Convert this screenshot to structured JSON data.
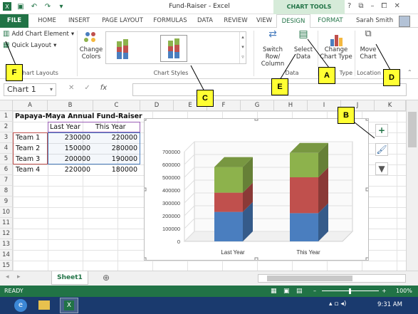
{
  "window": {
    "title": "Fund-Raiser - Excel",
    "context_header": "CHART TOOLS",
    "controls": [
      "?",
      "⧉",
      "–",
      "⧠",
      "✕"
    ]
  },
  "tabs": [
    "FILE",
    "HOME",
    "INSERT",
    "PAGE LAYOUT",
    "FORMULAS",
    "DATA",
    "REVIEW",
    "VIEW",
    "DESIGN",
    "FORMAT"
  ],
  "user": "Sarah Smith",
  "ribbon": {
    "add_chart_element": "Add Chart Element",
    "quick_layout": "Quick Layout",
    "chart_layouts_label": "Chart Layouts",
    "change_colors": "Change",
    "change_colors2": "Colors",
    "chart_styles_label": "Chart Styles",
    "switch_row": "Switch Row/",
    "switch_col": "Column",
    "select": "Select",
    "data": "Data",
    "data_label": "Data",
    "change_type": "Change",
    "change_type2": "Chart Type",
    "type_label": "Type",
    "move_chart": "Move",
    "move_chart2": "Chart",
    "location_label": "Location"
  },
  "namebox": "Chart 1",
  "columns": [
    "A",
    "B",
    "C",
    "D",
    "E",
    "F",
    "G",
    "H",
    "I",
    "J",
    "K"
  ],
  "rows": [
    "1",
    "2",
    "3",
    "4",
    "5",
    "6",
    "7",
    "8",
    "9",
    "10",
    "11",
    "12",
    "13",
    "14",
    "15"
  ],
  "sheet": {
    "title": "Papaya-Maya Annual Fund-Raiser",
    "headers": [
      "Last Year",
      "This Year"
    ],
    "data": [
      {
        "team": "Team 1",
        "last": "230000",
        "this": "220000"
      },
      {
        "team": "Team 2",
        "last": "150000",
        "this": "280000"
      },
      {
        "team": "Team 3",
        "last": "200000",
        "this": "190000"
      },
      {
        "team": "Team 4",
        "last": "220000",
        "this": "180000"
      }
    ]
  },
  "chart_data": {
    "type": "bar",
    "stacked": true,
    "categories": [
      "Last Year",
      "This Year"
    ],
    "series": [
      {
        "values": [
          230000,
          220000
        ],
        "color": "#4a7ebf"
      },
      {
        "values": [
          150000,
          280000
        ],
        "color": "#c0504d"
      },
      {
        "values": [
          200000,
          190000
        ],
        "color": "#8db24c"
      }
    ],
    "ylim": [
      0,
      700000
    ],
    "yticks": [
      "0",
      "100000",
      "200000",
      "300000",
      "400000",
      "500000",
      "600000",
      "700000"
    ]
  },
  "sheet_tab": "Sheet1",
  "add_sheet": "⊕",
  "status": {
    "ready": "READY",
    "zoom": "100%"
  },
  "taskbar": {
    "time": "9:31 AM"
  },
  "callouts": {
    "A": "A",
    "B": "B",
    "C": "C",
    "D": "D",
    "E": "E",
    "F": "F"
  },
  "chart_buttons": {
    "elements": "+",
    "styles": "🖌",
    "filters": "▼"
  }
}
